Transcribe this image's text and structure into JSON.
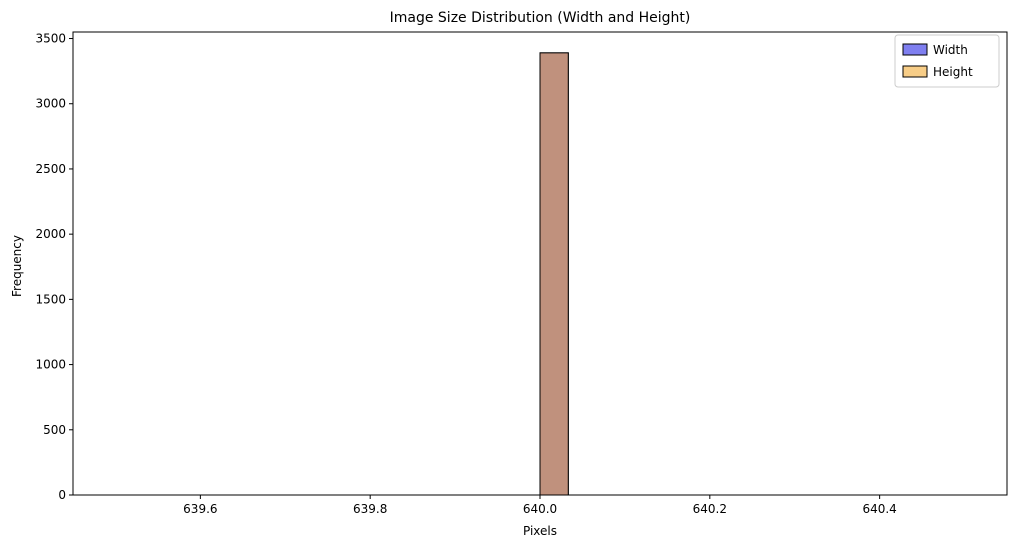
{
  "chart_data": {
    "type": "bar",
    "title": "Image Size Distribution (Width and Height)",
    "xlabel": "Pixels",
    "ylabel": "Frequency",
    "xlim": [
      639.45,
      640.55
    ],
    "ylim": [
      0,
      3550
    ],
    "x_ticks": [
      639.6,
      639.8,
      640.0,
      640.2,
      640.4
    ],
    "x_tick_labels": [
      "639.6",
      "639.8",
      "640.0",
      "640.2",
      "640.4"
    ],
    "y_ticks": [
      0,
      500,
      1000,
      1500,
      2000,
      2500,
      3000,
      3500
    ],
    "y_tick_labels": [
      "0",
      "500",
      "1000",
      "1500",
      "2000",
      "2500",
      "3000",
      "3500"
    ],
    "bins": {
      "start": 639.5,
      "end": 640.5,
      "count": 30
    },
    "series": [
      {
        "name": "Width",
        "color": "#7f7ff0",
        "edge": "#000000",
        "bars": [
          {
            "x0": 640.0,
            "x1": 640.0333,
            "count": 3390
          }
        ]
      },
      {
        "name": "Height",
        "color": "#f7cd87",
        "edge": "#000000",
        "bars": [
          {
            "x0": 640.0,
            "x1": 640.0333,
            "count": 3390
          }
        ]
      }
    ],
    "overlap_color": "#c0917d",
    "legend_position": "top-right",
    "grid": false
  }
}
